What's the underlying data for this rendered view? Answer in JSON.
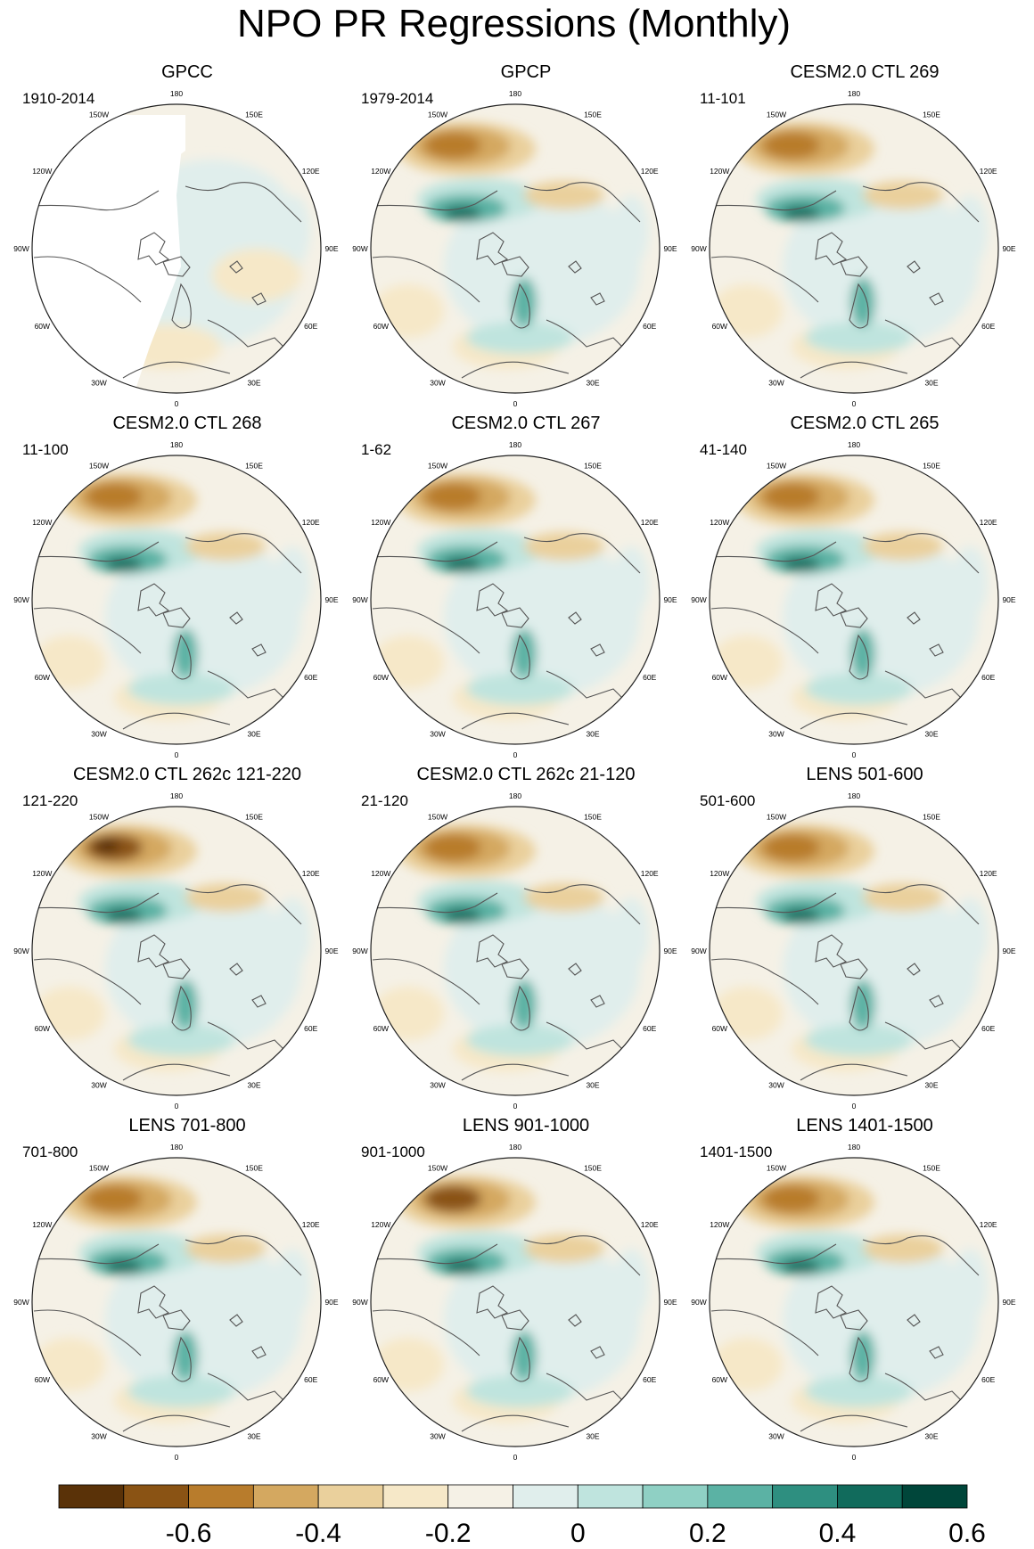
{
  "title": "NPO PR Regressions (Monthly)",
  "longitude_labels": [
    "180",
    "150E",
    "120E",
    "90E",
    "60E",
    "30E",
    "0",
    "30W",
    "60W",
    "90W",
    "120W",
    "150W"
  ],
  "panels": [
    {
      "title": "GPCC",
      "period": "1910-2014"
    },
    {
      "title": "GPCP",
      "period": "1979-2014"
    },
    {
      "title": "CESM2.0 CTL 269",
      "period": "11-101"
    },
    {
      "title": "CESM2.0 CTL 268",
      "period": "11-100"
    },
    {
      "title": "CESM2.0 CTL 267",
      "period": "1-62"
    },
    {
      "title": "CESM2.0 CTL 265",
      "period": "41-140"
    },
    {
      "title": "CESM2.0 CTL 262c 121-220",
      "period": "121-220"
    },
    {
      "title": "CESM2.0 CTL 262c 21-120",
      "period": "21-120"
    },
    {
      "title": "LENS 501-600",
      "period": "501-600"
    },
    {
      "title": "LENS 701-800",
      "period": "701-800"
    },
    {
      "title": "LENS 901-1000",
      "period": "901-1000"
    },
    {
      "title": "LENS 1401-1500",
      "period": "1401-1500"
    }
  ],
  "colorbar": {
    "colors": [
      "#5a3208",
      "#8a5314",
      "#b87c2c",
      "#d4a860",
      "#ead09c",
      "#f6e8c8",
      "#f5f1e6",
      "#e0eeec",
      "#bfe4de",
      "#8fd0c4",
      "#5bb2a4",
      "#2e8f80",
      "#116b5c",
      "#00463a"
    ],
    "tick_labels": [
      "-0.6",
      "-0.4",
      "-0.2",
      "0",
      "0.2",
      "0.4",
      "0.6"
    ]
  }
}
